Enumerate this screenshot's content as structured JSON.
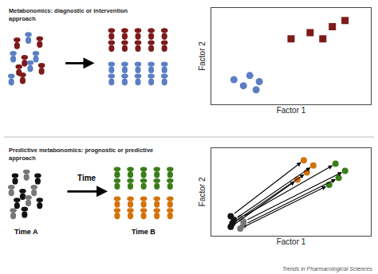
{
  "chart_data": [
    {
      "type": "scatter",
      "title": "Metabonomics: diagnostic or intervention\napproach",
      "x_label": "Factor 1",
      "y_label": "Factor 2",
      "xlim": [
        0.3,
        5.3
      ],
      "ylim": [
        0.3,
        5.0
      ],
      "tick_labels": false,
      "grid": false,
      "series": [
        {
          "color": "#7d1a1a",
          "marker": "square",
          "x": [
            2.8,
            3.4,
            3.8,
            4.1,
            4.5
          ],
          "y": [
            3.5,
            3.8,
            3.5,
            4.1,
            4.4
          ]
        },
        {
          "color": "#5b7fc4",
          "marker": "circle",
          "x": [
            1.0,
            1.5,
            1.8,
            1.3,
            1.7
          ],
          "y": [
            1.5,
            1.7,
            1.4,
            1.2,
            1.0
          ]
        }
      ]
    },
    {
      "type": "arrow",
      "title": "Predictive metabonomics: prognostic or predictive\napproach",
      "annotations": [
        "Time",
        "Time A",
        "Time B",
        "Trends in Pharmacological Sciences"
      ],
      "x_label": "Factor 1",
      "y_label": "Factor 2",
      "xlim": [
        0.5,
        5.5
      ],
      "ylim": [
        0.3,
        5.3
      ],
      "tick_labels": false,
      "grid": false,
      "series": [
        {
          "x": [
            1.1,
            3.2
          ],
          "y": [
            0.8,
            3.5
          ],
          "colors": [
            "#111111",
            "#d4720a"
          ]
        },
        {
          "x": [
            1.15,
            3.5
          ],
          "y": [
            1.0,
            3.9
          ],
          "colors": [
            "#111111",
            "#d4720a"
          ]
        },
        {
          "x": [
            1.2,
            3.7
          ],
          "y": [
            1.2,
            4.3
          ],
          "colors": [
            "#111111",
            "#d4720a"
          ]
        },
        {
          "x": [
            1.1,
            3.4
          ],
          "y": [
            1.4,
            4.6
          ],
          "colors": [
            "#111111",
            "#d4720a"
          ]
        },
        {
          "x": [
            1.4,
            4.2
          ],
          "y": [
            0.7,
            3.2
          ],
          "colors": [
            "#777777",
            "#3a7d1a"
          ]
        },
        {
          "x": [
            1.5,
            4.5
          ],
          "y": [
            0.9,
            3.6
          ],
          "colors": [
            "#777777",
            "#3a7d1a"
          ]
        },
        {
          "x": [
            1.5,
            4.7
          ],
          "y": [
            1.1,
            4.0
          ],
          "colors": [
            "#777777",
            "#3a7d1a"
          ]
        },
        {
          "x": [
            1.4,
            4.4
          ],
          "y": [
            1.3,
            4.4
          ],
          "colors": [
            "#999999",
            "#3a7d1a"
          ]
        }
      ]
    }
  ]
}
